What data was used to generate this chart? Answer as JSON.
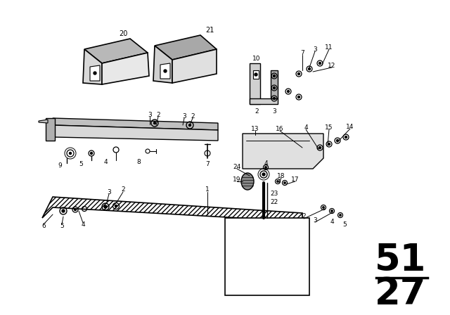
{
  "bg_color": "#ffffff",
  "lc": "#000000",
  "gray1": "#c8c8c8",
  "gray2": "#b0b0b0",
  "gray3": "#e0e0e0"
}
